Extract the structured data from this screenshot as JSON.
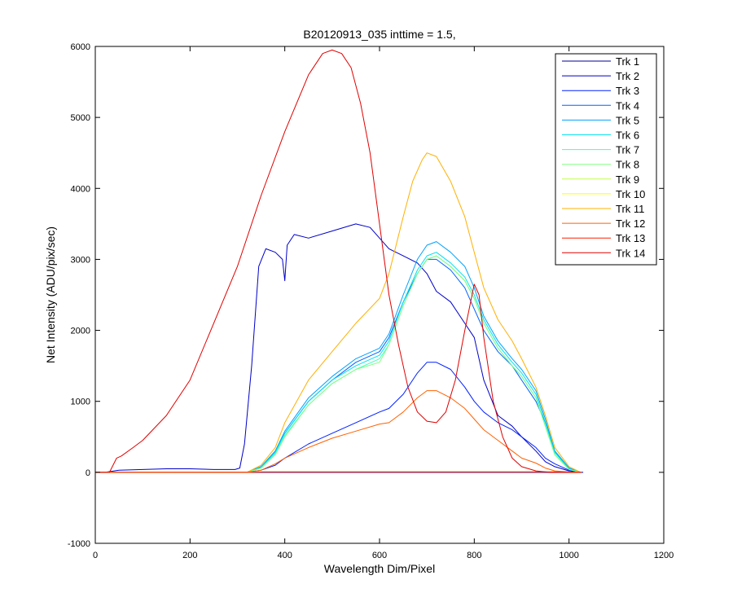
{
  "chart_data": {
    "type": "line",
    "title": "B20120913_035 inttime = 1.5,",
    "xlabel": "Wavelength Dim/Pixel",
    "ylabel": "Net Intensity (ADU/pix/sec)",
    "xlim": [
      0,
      1200
    ],
    "ylim": [
      -1000,
      6000
    ],
    "xticks": [
      0,
      200,
      400,
      600,
      800,
      1000,
      1200
    ],
    "yticks": [
      -1000,
      0,
      1000,
      2000,
      3000,
      4000,
      5000,
      6000
    ],
    "grid": false,
    "legend_position": "top-right",
    "series": [
      {
        "name": "Trk 1",
        "color": "#00008f",
        "x": [
          0,
          300,
          1030
        ],
        "y": [
          0,
          0,
          0
        ]
      },
      {
        "name": "Trk 2",
        "color": "#0000c8",
        "x": [
          0,
          20,
          50,
          100,
          150,
          200,
          250,
          295,
          305,
          315,
          330,
          345,
          360,
          380,
          395,
          400,
          405,
          420,
          450,
          500,
          550,
          580,
          600,
          620,
          650,
          680,
          700,
          720,
          750,
          780,
          800,
          820,
          850,
          880,
          900,
          930,
          950,
          970,
          1000,
          1025
        ],
        "y": [
          0,
          0,
          30,
          40,
          50,
          50,
          40,
          40,
          60,
          400,
          1500,
          2900,
          3150,
          3100,
          3000,
          2700,
          3200,
          3350,
          3300,
          3400,
          3500,
          3450,
          3300,
          3150,
          3050,
          2950,
          2800,
          2550,
          2400,
          2100,
          1900,
          1300,
          800,
          650,
          500,
          300,
          150,
          80,
          20,
          0
        ]
      },
      {
        "name": "Trk 3",
        "color": "#0020ff",
        "x": [
          0,
          320,
          350,
          380,
          400,
          450,
          500,
          550,
          600,
          620,
          650,
          680,
          700,
          720,
          750,
          780,
          800,
          820,
          850,
          880,
          900,
          930,
          950,
          970,
          1000,
          1025
        ],
        "y": [
          0,
          0,
          30,
          100,
          200,
          400,
          550,
          700,
          850,
          900,
          1100,
          1400,
          1550,
          1550,
          1450,
          1200,
          1000,
          850,
          700,
          600,
          500,
          350,
          200,
          120,
          30,
          0
        ]
      },
      {
        "name": "Trk 4",
        "color": "#0060ff",
        "x": [
          0,
          320,
          350,
          380,
          400,
          450,
          500,
          550,
          600,
          620,
          650,
          680,
          700,
          720,
          750,
          780,
          800,
          820,
          850,
          880,
          900,
          930,
          950,
          970,
          1000,
          1025
        ],
        "y": [
          0,
          0,
          80,
          300,
          550,
          1000,
          1300,
          1550,
          1700,
          1900,
          2400,
          2800,
          3000,
          3000,
          2850,
          2600,
          2300,
          2000,
          1700,
          1500,
          1300,
          1000,
          700,
          300,
          60,
          0
        ]
      },
      {
        "name": "Trk 5",
        "color": "#00a0ff",
        "x": [
          0,
          320,
          350,
          380,
          400,
          450,
          500,
          550,
          600,
          620,
          650,
          680,
          700,
          720,
          750,
          780,
          800,
          820,
          850,
          880,
          900,
          930,
          950,
          970,
          1000,
          1025
        ],
        "y": [
          0,
          0,
          80,
          300,
          580,
          1050,
          1350,
          1600,
          1750,
          1950,
          2500,
          3000,
          3200,
          3250,
          3100,
          2900,
          2600,
          2200,
          1850,
          1600,
          1450,
          1150,
          750,
          300,
          60,
          0
        ]
      },
      {
        "name": "Trk 6",
        "color": "#00e0f0",
        "x": [
          0,
          320,
          350,
          380,
          400,
          450,
          500,
          550,
          600,
          620,
          650,
          680,
          700,
          720,
          750,
          780,
          800,
          820,
          850,
          880,
          900,
          930,
          950,
          970,
          1000,
          1025
        ],
        "y": [
          0,
          0,
          70,
          280,
          550,
          1000,
          1300,
          1500,
          1650,
          1850,
          2400,
          2850,
          3050,
          3100,
          2950,
          2750,
          2500,
          2150,
          1800,
          1550,
          1400,
          1100,
          700,
          280,
          50,
          0
        ]
      },
      {
        "name": "Trk 7",
        "color": "#40ffc0",
        "x": [
          0,
          320,
          350,
          380,
          400,
          450,
          500,
          550,
          600,
          620,
          650,
          680,
          700,
          720,
          750,
          780,
          800,
          820,
          850,
          880,
          900,
          930,
          950,
          970,
          1000,
          1025
        ],
        "y": [
          0,
          0,
          60,
          260,
          520,
          950,
          1250,
          1450,
          1600,
          1800,
          2350,
          2800,
          3000,
          3050,
          2900,
          2700,
          2450,
          2100,
          1750,
          1500,
          1350,
          1050,
          650,
          250,
          40,
          0
        ]
      },
      {
        "name": "Trk 8",
        "color": "#80ff80",
        "x": [
          0,
          320,
          350,
          380,
          400,
          450,
          500,
          550,
          600,
          620,
          650,
          680,
          700,
          720,
          750,
          780,
          800,
          820,
          850,
          880,
          900,
          930,
          950,
          970,
          1000,
          1025
        ],
        "y": [
          0,
          0,
          60,
          250,
          500,
          950,
          1250,
          1450,
          1550,
          1800,
          2350,
          2800,
          3000,
          3050,
          2900,
          2700,
          2450,
          2100,
          1750,
          1500,
          1350,
          1050,
          650,
          250,
          40,
          0
        ]
      },
      {
        "name": "Trk 9",
        "color": "#c0ff40",
        "x": [
          0,
          320,
          350,
          380,
          400,
          450,
          500,
          550,
          600,
          620,
          650,
          680,
          700,
          720,
          750,
          780,
          800,
          820,
          850,
          880,
          900,
          930,
          950,
          970,
          1000,
          1025
        ],
        "y": [
          0,
          0,
          10,
          10,
          10,
          10,
          10,
          10,
          10,
          10,
          10,
          10,
          10,
          10,
          10,
          10,
          10,
          10,
          10,
          10,
          10,
          10,
          10,
          10,
          5,
          0
        ]
      },
      {
        "name": "Trk 10",
        "color": "#ffff00",
        "x": [
          0,
          320,
          350,
          380,
          400,
          450,
          500,
          550,
          600,
          620,
          650,
          680,
          700,
          720,
          750,
          780,
          800,
          820,
          850,
          880,
          900,
          930,
          950,
          970,
          1000,
          1025
        ],
        "y": [
          0,
          0,
          10,
          10,
          10,
          10,
          10,
          10,
          10,
          10,
          10,
          10,
          10,
          10,
          10,
          10,
          10,
          10,
          10,
          10,
          10,
          10,
          10,
          10,
          5,
          0
        ]
      },
      {
        "name": "Trk 11",
        "color": "#ffb000",
        "x": [
          0,
          320,
          350,
          380,
          400,
          450,
          500,
          550,
          600,
          620,
          650,
          670,
          690,
          700,
          720,
          750,
          780,
          800,
          820,
          850,
          880,
          900,
          930,
          950,
          970,
          1000,
          1025
        ],
        "y": [
          0,
          0,
          100,
          350,
          700,
          1300,
          1700,
          2100,
          2450,
          2800,
          3600,
          4100,
          4400,
          4500,
          4450,
          4100,
          3600,
          3100,
          2600,
          2150,
          1850,
          1600,
          1200,
          800,
          350,
          80,
          0
        ]
      },
      {
        "name": "Trk 12",
        "color": "#ff6000",
        "x": [
          0,
          320,
          350,
          380,
          400,
          450,
          500,
          550,
          600,
          620,
          650,
          680,
          700,
          720,
          750,
          780,
          800,
          820,
          850,
          880,
          900,
          930,
          950,
          970,
          1000,
          1025
        ],
        "y": [
          0,
          0,
          30,
          120,
          200,
          350,
          480,
          580,
          680,
          700,
          850,
          1050,
          1150,
          1150,
          1050,
          900,
          750,
          600,
          450,
          300,
          200,
          130,
          60,
          20,
          5,
          0
        ]
      },
      {
        "name": "Trk 13",
        "color": "#ff2000",
        "x": [
          0,
          320,
          350,
          380,
          400,
          450,
          500,
          550,
          600,
          620,
          650,
          680,
          700,
          720,
          750,
          780,
          800,
          820,
          850,
          880,
          900,
          930,
          950,
          970,
          1000,
          1025
        ],
        "y": [
          0,
          0,
          5,
          5,
          5,
          5,
          5,
          5,
          5,
          5,
          5,
          5,
          5,
          5,
          5,
          5,
          5,
          5,
          5,
          5,
          5,
          5,
          5,
          5,
          0,
          0
        ]
      },
      {
        "name": "Trk 14",
        "color": "#e00000",
        "x": [
          0,
          30,
          45,
          55,
          80,
          100,
          150,
          200,
          250,
          300,
          350,
          400,
          450,
          480,
          500,
          520,
          540,
          560,
          580,
          600,
          620,
          640,
          660,
          680,
          700,
          720,
          740,
          760,
          780,
          800,
          810,
          820,
          840,
          860,
          880,
          900,
          930,
          960,
          1000,
          1025
        ],
        "y": [
          0,
          0,
          200,
          230,
          350,
          450,
          800,
          1300,
          2100,
          2900,
          3900,
          4800,
          5600,
          5900,
          5950,
          5900,
          5700,
          5200,
          4500,
          3500,
          2500,
          1800,
          1200,
          850,
          720,
          700,
          850,
          1300,
          2000,
          2650,
          2500,
          1900,
          1000,
          500,
          200,
          80,
          20,
          0,
          0,
          0
        ]
      }
    ]
  }
}
